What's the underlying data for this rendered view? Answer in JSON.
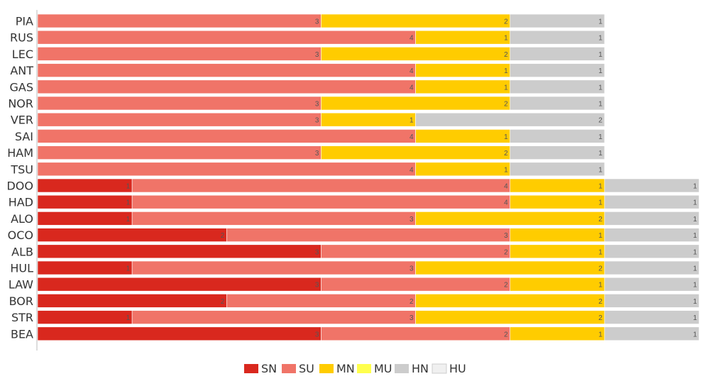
{
  "chart_data": {
    "type": "bar",
    "orientation": "horizontal",
    "stacked": true,
    "categories": [
      "PIA",
      "RUS",
      "LEC",
      "ANT",
      "GAS",
      "NOR",
      "VER",
      "SAI",
      "HAM",
      "TSU",
      "DOO",
      "HAD",
      "ALO",
      "OCO",
      "ALB",
      "HUL",
      "LAW",
      "BOR",
      "STR",
      "BEA"
    ],
    "series": [
      {
        "name": "SN",
        "color": "#d9281e",
        "values": [
          0,
          0,
          0,
          0,
          0,
          0,
          0,
          0,
          0,
          0,
          1,
          1,
          1,
          2,
          3,
          1,
          3,
          2,
          1,
          3
        ]
      },
      {
        "name": "SU",
        "color": "#f07468",
        "values": [
          3,
          4,
          3,
          4,
          4,
          3,
          3,
          4,
          3,
          4,
          4,
          4,
          3,
          3,
          2,
          3,
          2,
          2,
          3,
          2
        ]
      },
      {
        "name": "MN",
        "color": "#ffcc00",
        "values": [
          2,
          1,
          2,
          1,
          1,
          2,
          1,
          1,
          2,
          1,
          1,
          1,
          2,
          1,
          1,
          2,
          1,
          2,
          2,
          1
        ]
      },
      {
        "name": "MU",
        "color": "#ffff4d",
        "values": [
          0,
          0,
          0,
          0,
          0,
          0,
          0,
          0,
          0,
          0,
          0,
          0,
          0,
          0,
          0,
          0,
          0,
          0,
          0,
          0
        ]
      },
      {
        "name": "HN",
        "color": "#cccccc",
        "values": [
          1,
          1,
          1,
          1,
          1,
          1,
          2,
          1,
          1,
          1,
          1,
          1,
          1,
          1,
          1,
          1,
          1,
          1,
          1,
          1
        ]
      },
      {
        "name": "HU",
        "color": "#f0f0f0",
        "values": [
          0,
          0,
          0,
          0,
          0,
          0,
          0,
          0,
          0,
          0,
          0,
          0,
          0,
          0,
          0,
          0,
          0,
          0,
          0,
          0
        ]
      }
    ],
    "xlim": [
      0,
      7
    ],
    "title": "",
    "xlabel": "",
    "ylabel": "",
    "legend": "bottom-center"
  }
}
